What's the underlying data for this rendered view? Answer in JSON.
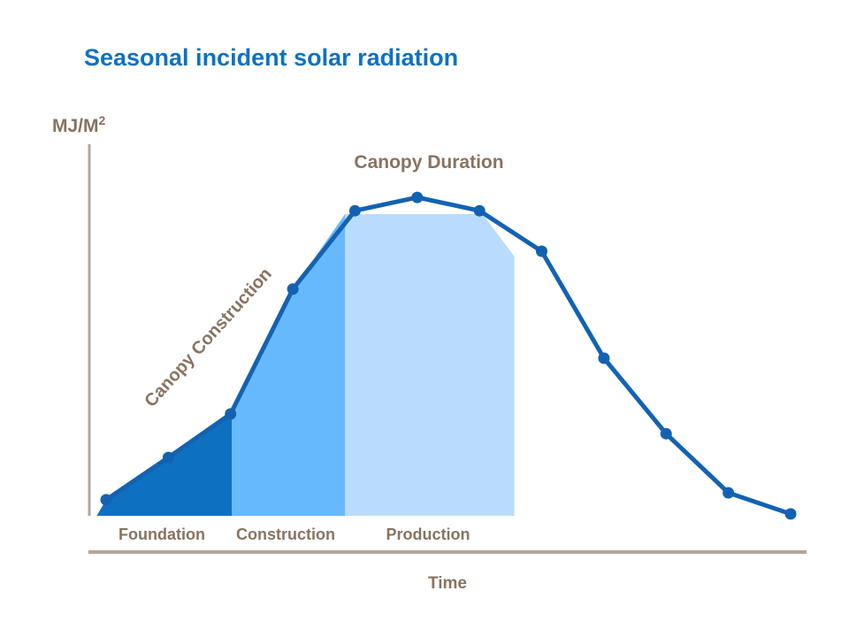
{
  "chart_data": {
    "type": "area",
    "title": "Seasonal incident solar radiation",
    "title_color": "#0d72c4",
    "xlabel": "Time",
    "ylabel": "MJ/M",
    "ylabel_superscript": "2",
    "label_color": "#877361",
    "line_color": "#1362b2",
    "axis_color": "#b2a89b",
    "grid": false,
    "legend": "none",
    "x": [
      0,
      1,
      2,
      3,
      4,
      5,
      6,
      7,
      8,
      9,
      10,
      11
    ],
    "values": [
      4.3,
      15.7,
      27.4,
      61.0,
      82.1,
      85.7,
      82.1,
      71.2,
      42.4,
      22.1,
      6.2,
      0.5
    ],
    "ylim": [
      0,
      100
    ],
    "annotations": [
      {
        "id": "canopy-duration",
        "text": "Canopy Duration"
      },
      {
        "id": "canopy-construction",
        "text": "Canopy Construction",
        "rotation_deg": -48
      }
    ],
    "regions": [
      {
        "id": "foundation",
        "label": "Foundation",
        "color": "#0e70c0",
        "polygon": [
          [
            -0.15,
            0
          ],
          [
            0,
            4.3
          ],
          [
            1,
            15.7
          ],
          [
            2,
            27.4
          ],
          [
            2.02,
            28.0
          ],
          [
            2.02,
            0
          ]
        ]
      },
      {
        "id": "construction",
        "label": "Construction",
        "color": "#66b9fc",
        "polygon": [
          [
            2.02,
            0
          ],
          [
            2.02,
            28.0
          ],
          [
            3,
            61.0
          ],
          [
            3.84,
            81.2
          ],
          [
            3.84,
            0
          ]
        ]
      },
      {
        "id": "production",
        "label": "Production",
        "color": "#b9dcfc",
        "polygon": [
          [
            3.84,
            0
          ],
          [
            3.84,
            81.2
          ],
          [
            6.05,
            81.2
          ],
          [
            6.56,
            69.8
          ],
          [
            6.56,
            0
          ]
        ]
      }
    ]
  }
}
